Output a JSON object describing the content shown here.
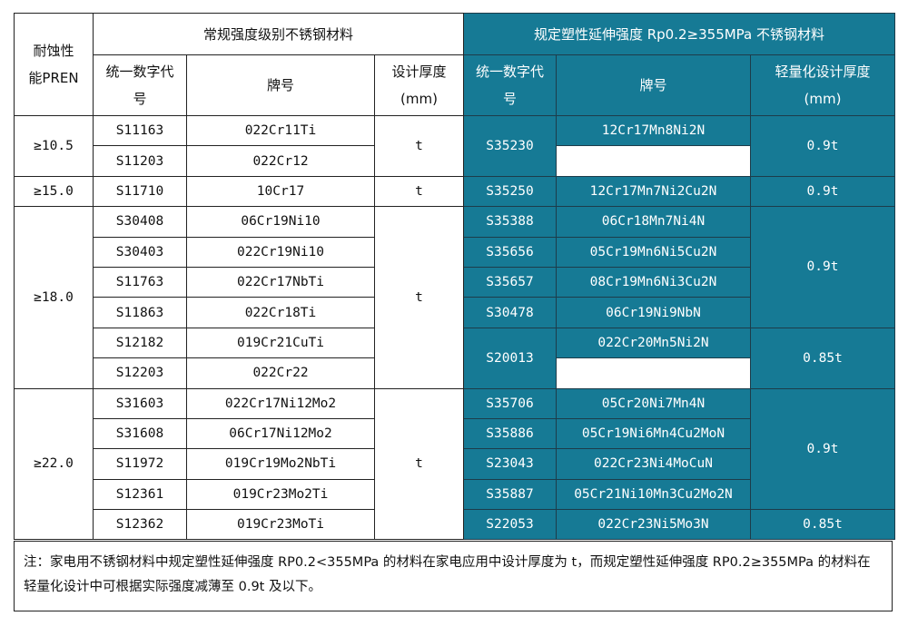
{
  "header": {
    "pren": "耐蚀性能PREN",
    "regular_group": "常规强度级别不锈钢材料",
    "high_group": "规定塑性延伸强度 Rp0.2≥355MPa 不锈钢材料",
    "code": "统一数字代号",
    "grade": "牌号",
    "design_thickness": "设计厚度(mm)",
    "light_thickness": "轻量化设计厚度(mm)"
  },
  "colors": {
    "highlight": "#167a95"
  },
  "rows": [
    {
      "pren": "≥10.5",
      "pren_span": 2,
      "code": "S11163",
      "grade": "022Cr11Ti",
      "t": "t",
      "t_span": 2,
      "hcode": "S35230",
      "hcode_span": 2,
      "hgrade": "12Cr17Mn8Ni2N",
      "ht": "0.9t",
      "ht_span": 2
    },
    {
      "code": "S11203",
      "grade": "022Cr12"
    },
    {
      "pren": "≥15.0",
      "pren_span": 1,
      "code": "S11710",
      "grade": "10Cr17",
      "t": "t",
      "t_span": 1,
      "hcode": "S35250",
      "hcode_span": 1,
      "hgrade": "12Cr17Mn7Ni2Cu2N",
      "ht": "0.9t",
      "ht_span": 1
    },
    {
      "pren": "≥18.0",
      "pren_span": 6,
      "code": "S30408",
      "grade": "06Cr19Ni10",
      "t": "t",
      "t_span": 6,
      "hcode": "S35388",
      "hcode_span": 1,
      "hgrade": "06Cr18Mn7Ni4N",
      "ht": "0.9t",
      "ht_span": 4
    },
    {
      "code": "S30403",
      "grade": "022Cr19Ni10",
      "hcode": "S35656",
      "hcode_span": 1,
      "hgrade": "05Cr19Mn6Ni5Cu2N"
    },
    {
      "code": "S11763",
      "grade": "022Cr17NbTi",
      "hcode": "S35657",
      "hcode_span": 1,
      "hgrade": "08Cr19Mn6Ni3Cu2N"
    },
    {
      "code": "S11863",
      "grade": "022Cr18Ti",
      "hcode": "S30478",
      "hcode_span": 1,
      "hgrade": "06Cr19Ni9NbN"
    },
    {
      "code": "S12182",
      "grade": "019Cr21CuTi",
      "hcode": "S20013",
      "hcode_span": 2,
      "hgrade": "022Cr20Mn5Ni2N",
      "ht": "0.85t",
      "ht_span": 2
    },
    {
      "code": "S12203",
      "grade": "022Cr22"
    },
    {
      "pren": "≥22.0",
      "pren_span": 5,
      "code": "S31603",
      "grade": "022Cr17Ni12Mo2",
      "t": "t",
      "t_span": 5,
      "hcode": "S35706",
      "hcode_span": 1,
      "hgrade": "05Cr20Ni7Mn4N",
      "ht": "0.9t",
      "ht_span": 4
    },
    {
      "code": "S31608",
      "grade": "06Cr17Ni12Mo2",
      "hcode": "S35886",
      "hcode_span": 1,
      "hgrade": "05Cr19Ni6Mn4Cu2MoN"
    },
    {
      "code": "S11972",
      "grade": "019Cr19Mo2NbTi",
      "hcode": "S23043",
      "hcode_span": 1,
      "hgrade": "022Cr23Ni4MoCuN"
    },
    {
      "code": "S12361",
      "grade": "019Cr23Mo2Ti",
      "hcode": "S35887",
      "hcode_span": 1,
      "hgrade": "05Cr21Ni10Mn3Cu2Mo2N"
    },
    {
      "code": "S12362",
      "grade": "019Cr23MoTi",
      "hcode": "S22053",
      "hcode_span": 1,
      "hgrade": "022Cr23Ni5Mo3N",
      "ht": "0.85t",
      "ht_span": 1
    }
  ],
  "note": "注：家电用不锈钢材料中规定塑性延伸强度 RP0.2<355MPa 的材料在家电应用中设计厚度为 t，而规定塑性延伸强度 RP0.2≥355MPa 的材料在轻量化设计中可根据实际强度减薄至 0.9t 及以下。"
}
